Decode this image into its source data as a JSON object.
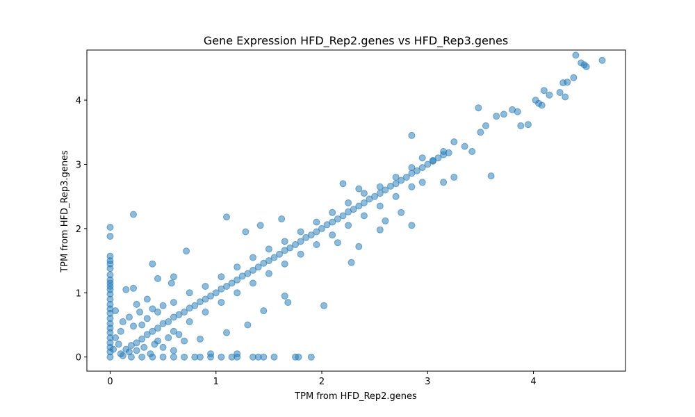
{
  "chart_data": {
    "type": "scatter",
    "title": "Gene Expression HFD_Rep2.genes vs HFD_Rep3.genes",
    "xlabel": "TPM from HFD_Rep2.genes",
    "ylabel": "TPM from HFD_Rep3.genes",
    "xlim": [
      -0.22,
      4.87
    ],
    "ylim": [
      -0.22,
      4.78
    ],
    "xticks": [
      0,
      1,
      2,
      3,
      4
    ],
    "yticks": [
      0,
      1,
      2,
      3,
      4
    ],
    "grid": false,
    "marker_color": "#1f77b4",
    "marker_alpha": 0.5,
    "points": [
      [
        0,
        2.02
      ],
      [
        0,
        1.88
      ],
      [
        0,
        1.57
      ],
      [
        0,
        1.5
      ],
      [
        0,
        1.45
      ],
      [
        0,
        1.38
      ],
      [
        0,
        1.28
      ],
      [
        0,
        1.2
      ],
      [
        0,
        1.15
      ],
      [
        0,
        1.1
      ],
      [
        0,
        1.05
      ],
      [
        0,
        0.98
      ],
      [
        0,
        0.9
      ],
      [
        0,
        0.82
      ],
      [
        0,
        0.75
      ],
      [
        0,
        0.68
      ],
      [
        0,
        0.6
      ],
      [
        0,
        0.52
      ],
      [
        0,
        0.45
      ],
      [
        0,
        0.38
      ],
      [
        0,
        0.3
      ],
      [
        0,
        0.22
      ],
      [
        0,
        0.15
      ],
      [
        0,
        0.08
      ],
      [
        0,
        0.0
      ],
      [
        0.22,
        2.22
      ],
      [
        0.4,
        1.45
      ],
      [
        0.72,
        1.65
      ],
      [
        1.1,
        2.18
      ],
      [
        1.28,
        1.95
      ],
      [
        1.42,
        2.05
      ],
      [
        1.62,
        2.15
      ],
      [
        0.15,
        1.05
      ],
      [
        0.22,
        1.07
      ],
      [
        0.05,
        0.72
      ],
      [
        0.25,
        0.82
      ],
      [
        0.35,
        0.9
      ],
      [
        0.45,
        1.22
      ],
      [
        0.58,
        1.15
      ],
      [
        0.6,
        1.25
      ],
      [
        0.2,
        0.0
      ],
      [
        0.3,
        0.0
      ],
      [
        0.4,
        0.0
      ],
      [
        0.5,
        0.0
      ],
      [
        0.6,
        0.0
      ],
      [
        0.7,
        0.0
      ],
      [
        0.8,
        0.0
      ],
      [
        0.85,
        0.0
      ],
      [
        0.95,
        0.0
      ],
      [
        1.05,
        0.0
      ],
      [
        1.15,
        0.0
      ],
      [
        1.2,
        0.0
      ],
      [
        1.35,
        0.0
      ],
      [
        1.4,
        0.0
      ],
      [
        1.45,
        0.0
      ],
      [
        1.55,
        0.0
      ],
      [
        1.75,
        0.0
      ],
      [
        1.78,
        0.0
      ],
      [
        1.9,
        0.0
      ],
      [
        1.2,
        0.05
      ],
      [
        0.95,
        0.05
      ],
      [
        0.6,
        0.1
      ],
      [
        0.7,
        0.25
      ],
      [
        0.85,
        0.28
      ],
      [
        1.1,
        0.38
      ],
      [
        1.3,
        0.5
      ],
      [
        1.45,
        0.72
      ],
      [
        1.65,
        0.95
      ],
      [
        1.68,
        0.85
      ],
      [
        2.02,
        0.8
      ],
      [
        2.15,
        1.78
      ],
      [
        2.28,
        1.47
      ],
      [
        2.35,
        1.72
      ],
      [
        2.55,
        1.98
      ],
      [
        2.6,
        2.12
      ],
      [
        2.75,
        2.25
      ],
      [
        2.85,
        2.05
      ],
      [
        2.95,
        2.72
      ],
      [
        3.15,
        2.72
      ],
      [
        3.25,
        2.8
      ],
      [
        3.6,
        2.82
      ],
      [
        2.2,
        2.7
      ],
      [
        2.35,
        2.62
      ],
      [
        2.85,
        3.45
      ],
      [
        2.95,
        3.1
      ],
      [
        3.05,
        3.05
      ],
      [
        3.15,
        3.2
      ],
      [
        3.25,
        3.35
      ],
      [
        3.35,
        3.28
      ],
      [
        3.42,
        3.2
      ],
      [
        3.5,
        3.5
      ],
      [
        3.48,
        3.88
      ],
      [
        3.55,
        3.6
      ],
      [
        3.65,
        3.75
      ],
      [
        3.72,
        3.78
      ],
      [
        3.8,
        3.85
      ],
      [
        3.85,
        3.82
      ],
      [
        3.88,
        3.6
      ],
      [
        3.95,
        3.62
      ],
      [
        4.02,
        4.0
      ],
      [
        4.05,
        3.95
      ],
      [
        4.08,
        3.92
      ],
      [
        4.1,
        4.15
      ],
      [
        4.15,
        4.08
      ],
      [
        4.25,
        4.12
      ],
      [
        4.28,
        4.27
      ],
      [
        4.3,
        4.05
      ],
      [
        4.32,
        4.28
      ],
      [
        4.38,
        4.35
      ],
      [
        4.4,
        4.7
      ],
      [
        4.45,
        4.58
      ],
      [
        4.48,
        4.55
      ],
      [
        4.5,
        4.52
      ],
      [
        4.65,
        4.62
      ],
      [
        0.1,
        0.05
      ],
      [
        0.15,
        0.12
      ],
      [
        0.2,
        0.18
      ],
      [
        0.25,
        0.22
      ],
      [
        0.3,
        0.28
      ],
      [
        0.35,
        0.35
      ],
      [
        0.4,
        0.4
      ],
      [
        0.45,
        0.45
      ],
      [
        0.5,
        0.52
      ],
      [
        0.55,
        0.55
      ],
      [
        0.6,
        0.62
      ],
      [
        0.65,
        0.66
      ],
      [
        0.7,
        0.7
      ],
      [
        0.75,
        0.76
      ],
      [
        0.8,
        0.8
      ],
      [
        0.85,
        0.86
      ],
      [
        0.9,
        0.9
      ],
      [
        0.95,
        0.95
      ],
      [
        1.0,
        1.0
      ],
      [
        1.05,
        1.06
      ],
      [
        1.1,
        1.1
      ],
      [
        1.15,
        1.15
      ],
      [
        1.2,
        1.2
      ],
      [
        1.25,
        1.26
      ],
      [
        1.3,
        1.3
      ],
      [
        1.35,
        1.35
      ],
      [
        1.4,
        1.4
      ],
      [
        1.45,
        1.46
      ],
      [
        1.5,
        1.5
      ],
      [
        1.55,
        1.55
      ],
      [
        1.6,
        1.6
      ],
      [
        1.65,
        1.66
      ],
      [
        1.7,
        1.7
      ],
      [
        1.75,
        1.75
      ],
      [
        1.8,
        1.8
      ],
      [
        1.85,
        1.86
      ],
      [
        1.9,
        1.9
      ],
      [
        1.95,
        1.95
      ],
      [
        2.0,
        2.0
      ],
      [
        2.05,
        2.06
      ],
      [
        2.1,
        2.1
      ],
      [
        2.15,
        2.15
      ],
      [
        2.2,
        2.2
      ],
      [
        2.25,
        2.26
      ],
      [
        2.3,
        2.3
      ],
      [
        2.35,
        2.35
      ],
      [
        2.4,
        2.4
      ],
      [
        2.45,
        2.46
      ],
      [
        2.5,
        2.5
      ],
      [
        2.55,
        2.55
      ],
      [
        2.6,
        2.6
      ],
      [
        2.65,
        2.66
      ],
      [
        2.7,
        2.7
      ],
      [
        2.75,
        2.75
      ],
      [
        2.8,
        2.8
      ],
      [
        2.85,
        2.86
      ],
      [
        2.9,
        2.9
      ],
      [
        2.95,
        2.95
      ],
      [
        3.0,
        3.0
      ],
      [
        3.05,
        3.06
      ],
      [
        3.1,
        3.1
      ],
      [
        3.15,
        3.15
      ],
      [
        3.2,
        3.18
      ],
      [
        0.3,
        0.5
      ],
      [
        0.45,
        0.7
      ],
      [
        0.6,
        0.85
      ],
      [
        0.75,
        1.0
      ],
      [
        0.9,
        1.1
      ],
      [
        1.05,
        1.25
      ],
      [
        1.2,
        1.4
      ],
      [
        1.35,
        1.55
      ],
      [
        1.5,
        1.68
      ],
      [
        1.65,
        1.8
      ],
      [
        1.8,
        1.95
      ],
      [
        1.95,
        2.1
      ],
      [
        2.1,
        2.25
      ],
      [
        2.25,
        2.4
      ],
      [
        2.4,
        2.55
      ],
      [
        2.55,
        2.65
      ],
      [
        2.7,
        2.8
      ],
      [
        2.85,
        2.95
      ],
      [
        0.45,
        0.25
      ],
      [
        0.6,
        0.4
      ],
      [
        0.75,
        0.55
      ],
      [
        0.9,
        0.7
      ],
      [
        1.05,
        0.85
      ],
      [
        1.2,
        1.0
      ],
      [
        1.35,
        1.15
      ],
      [
        1.5,
        1.3
      ],
      [
        1.65,
        1.45
      ],
      [
        1.8,
        1.6
      ],
      [
        1.95,
        1.75
      ],
      [
        2.1,
        1.9
      ],
      [
        2.25,
        2.05
      ],
      [
        2.4,
        2.2
      ],
      [
        2.55,
        2.35
      ],
      [
        2.7,
        2.5
      ],
      [
        2.85,
        2.65
      ],
      [
        0.05,
        0.3
      ],
      [
        0.1,
        0.4
      ],
      [
        0.12,
        0.55
      ],
      [
        0.18,
        0.62
      ],
      [
        0.22,
        0.48
      ],
      [
        0.28,
        0.7
      ],
      [
        0.08,
        0.2
      ],
      [
        0.03,
        0.12
      ],
      [
        0.12,
        0.02
      ],
      [
        0.18,
        0.08
      ],
      [
        0.25,
        0.1
      ],
      [
        0.32,
        0.15
      ],
      [
        0.38,
        0.05
      ],
      [
        0.42,
        0.2
      ],
      [
        0.5,
        0.15
      ],
      [
        0.55,
        0.3
      ],
      [
        0.65,
        0.35
      ],
      [
        0.35,
        0.6
      ],
      [
        0.4,
        0.75
      ],
      [
        0.5,
        0.8
      ]
    ]
  }
}
